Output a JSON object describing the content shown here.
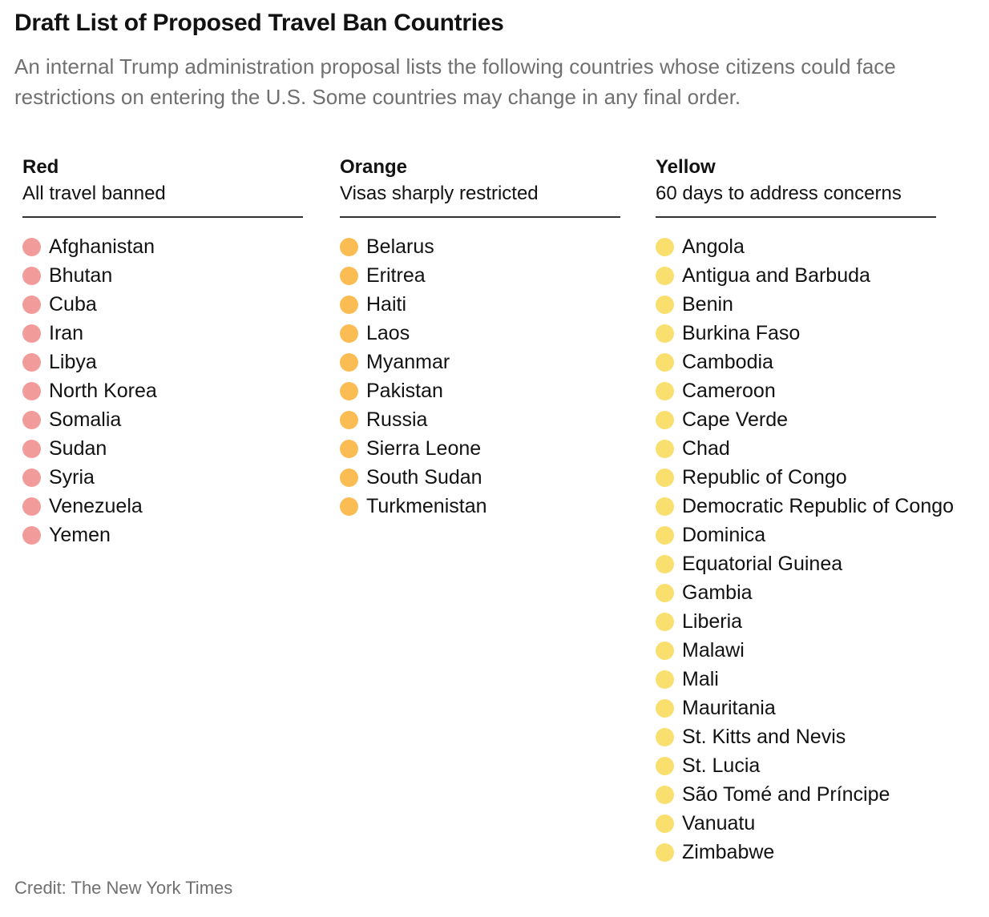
{
  "title": "Draft List of Proposed Travel Ban Countries",
  "subtitle": "An internal Trump administration proposal lists the following countries whose citizens could face restrictions on entering the U.S. Some countries may change in any final order.",
  "credit": "Credit: The New York Times",
  "columns": [
    {
      "name": "Red",
      "description": "All travel banned",
      "color": "#f29b9b",
      "countries": [
        "Afghanistan",
        "Bhutan",
        "Cuba",
        "Iran",
        "Libya",
        "North Korea",
        "Somalia",
        "Sudan",
        "Syria",
        "Venezuela",
        "Yemen"
      ]
    },
    {
      "name": "Orange",
      "description": "Visas sharply restricted",
      "color": "#fbbc54",
      "countries": [
        "Belarus",
        "Eritrea",
        "Haiti",
        "Laos",
        "Myanmar",
        "Pakistan",
        "Russia",
        "Sierra Leone",
        "South Sudan",
        "Turkmenistan"
      ]
    },
    {
      "name": "Yellow",
      "description": "60 days to address concerns",
      "color": "#f8df6e",
      "countries": [
        "Angola",
        "Antigua and Barbuda",
        "Benin",
        "Burkina Faso",
        "Cambodia",
        "Cameroon",
        "Cape Verde",
        "Chad",
        "Republic of Congo",
        "Democratic Republic of Congo",
        "Dominica",
        "Equatorial Guinea",
        "Gambia",
        "Liberia",
        "Malawi",
        "Mali",
        "Mauritania",
        "St. Kitts and Nevis",
        "St. Lucia",
        "São Tomé and Príncipe",
        "Vanuatu",
        "Zimbabwe"
      ]
    }
  ]
}
